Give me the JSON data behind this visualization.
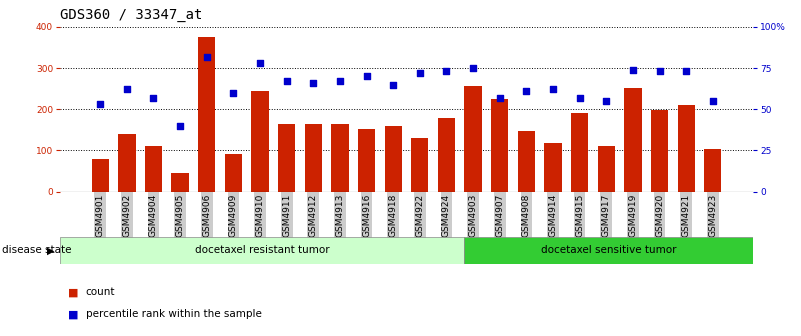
{
  "title": "GDS360 / 33347_at",
  "categories": [
    "GSM4901",
    "GSM4902",
    "GSM4904",
    "GSM4905",
    "GSM4906",
    "GSM4909",
    "GSM4910",
    "GSM4911",
    "GSM4912",
    "GSM4913",
    "GSM4916",
    "GSM4918",
    "GSM4922",
    "GSM4924",
    "GSM4903",
    "GSM4907",
    "GSM4908",
    "GSM4914",
    "GSM4915",
    "GSM4917",
    "GSM4919",
    "GSM4920",
    "GSM4921",
    "GSM4923"
  ],
  "counts": [
    80,
    140,
    110,
    45,
    375,
    92,
    245,
    165,
    163,
    165,
    153,
    158,
    130,
    178,
    257,
    225,
    148,
    118,
    190,
    110,
    252,
    198,
    210,
    103
  ],
  "percentile_ranks": [
    53,
    62,
    57,
    40,
    82,
    60,
    78,
    67,
    66,
    67,
    70,
    65,
    72,
    73,
    75,
    57,
    61,
    62,
    57,
    55,
    74,
    73,
    73,
    55
  ],
  "resistant_count": 14,
  "sensitive_count": 10,
  "bar_color": "#CC2200",
  "dot_color": "#0000CC",
  "resistant_color_light": "#CCFFCC",
  "sensitive_color": "#33CC33",
  "ylim_left": [
    0,
    400
  ],
  "ylim_right": [
    0,
    100
  ],
  "left_yticks": [
    0,
    100,
    200,
    300,
    400
  ],
  "right_yticks": [
    0,
    25,
    50,
    75,
    100
  ],
  "right_yticklabels": [
    "0",
    "25",
    "50",
    "75",
    "100%"
  ],
  "legend_count_label": "count",
  "legend_percentile_label": "percentile rank within the sample",
  "disease_state_label": "disease state",
  "resistant_label": "docetaxel resistant tumor",
  "sensitive_label": "docetaxel sensitive tumor",
  "background_color": "#ffffff",
  "grid_color": "#000000",
  "title_fontsize": 10,
  "tick_fontsize": 6.5,
  "label_fontsize": 7.5
}
